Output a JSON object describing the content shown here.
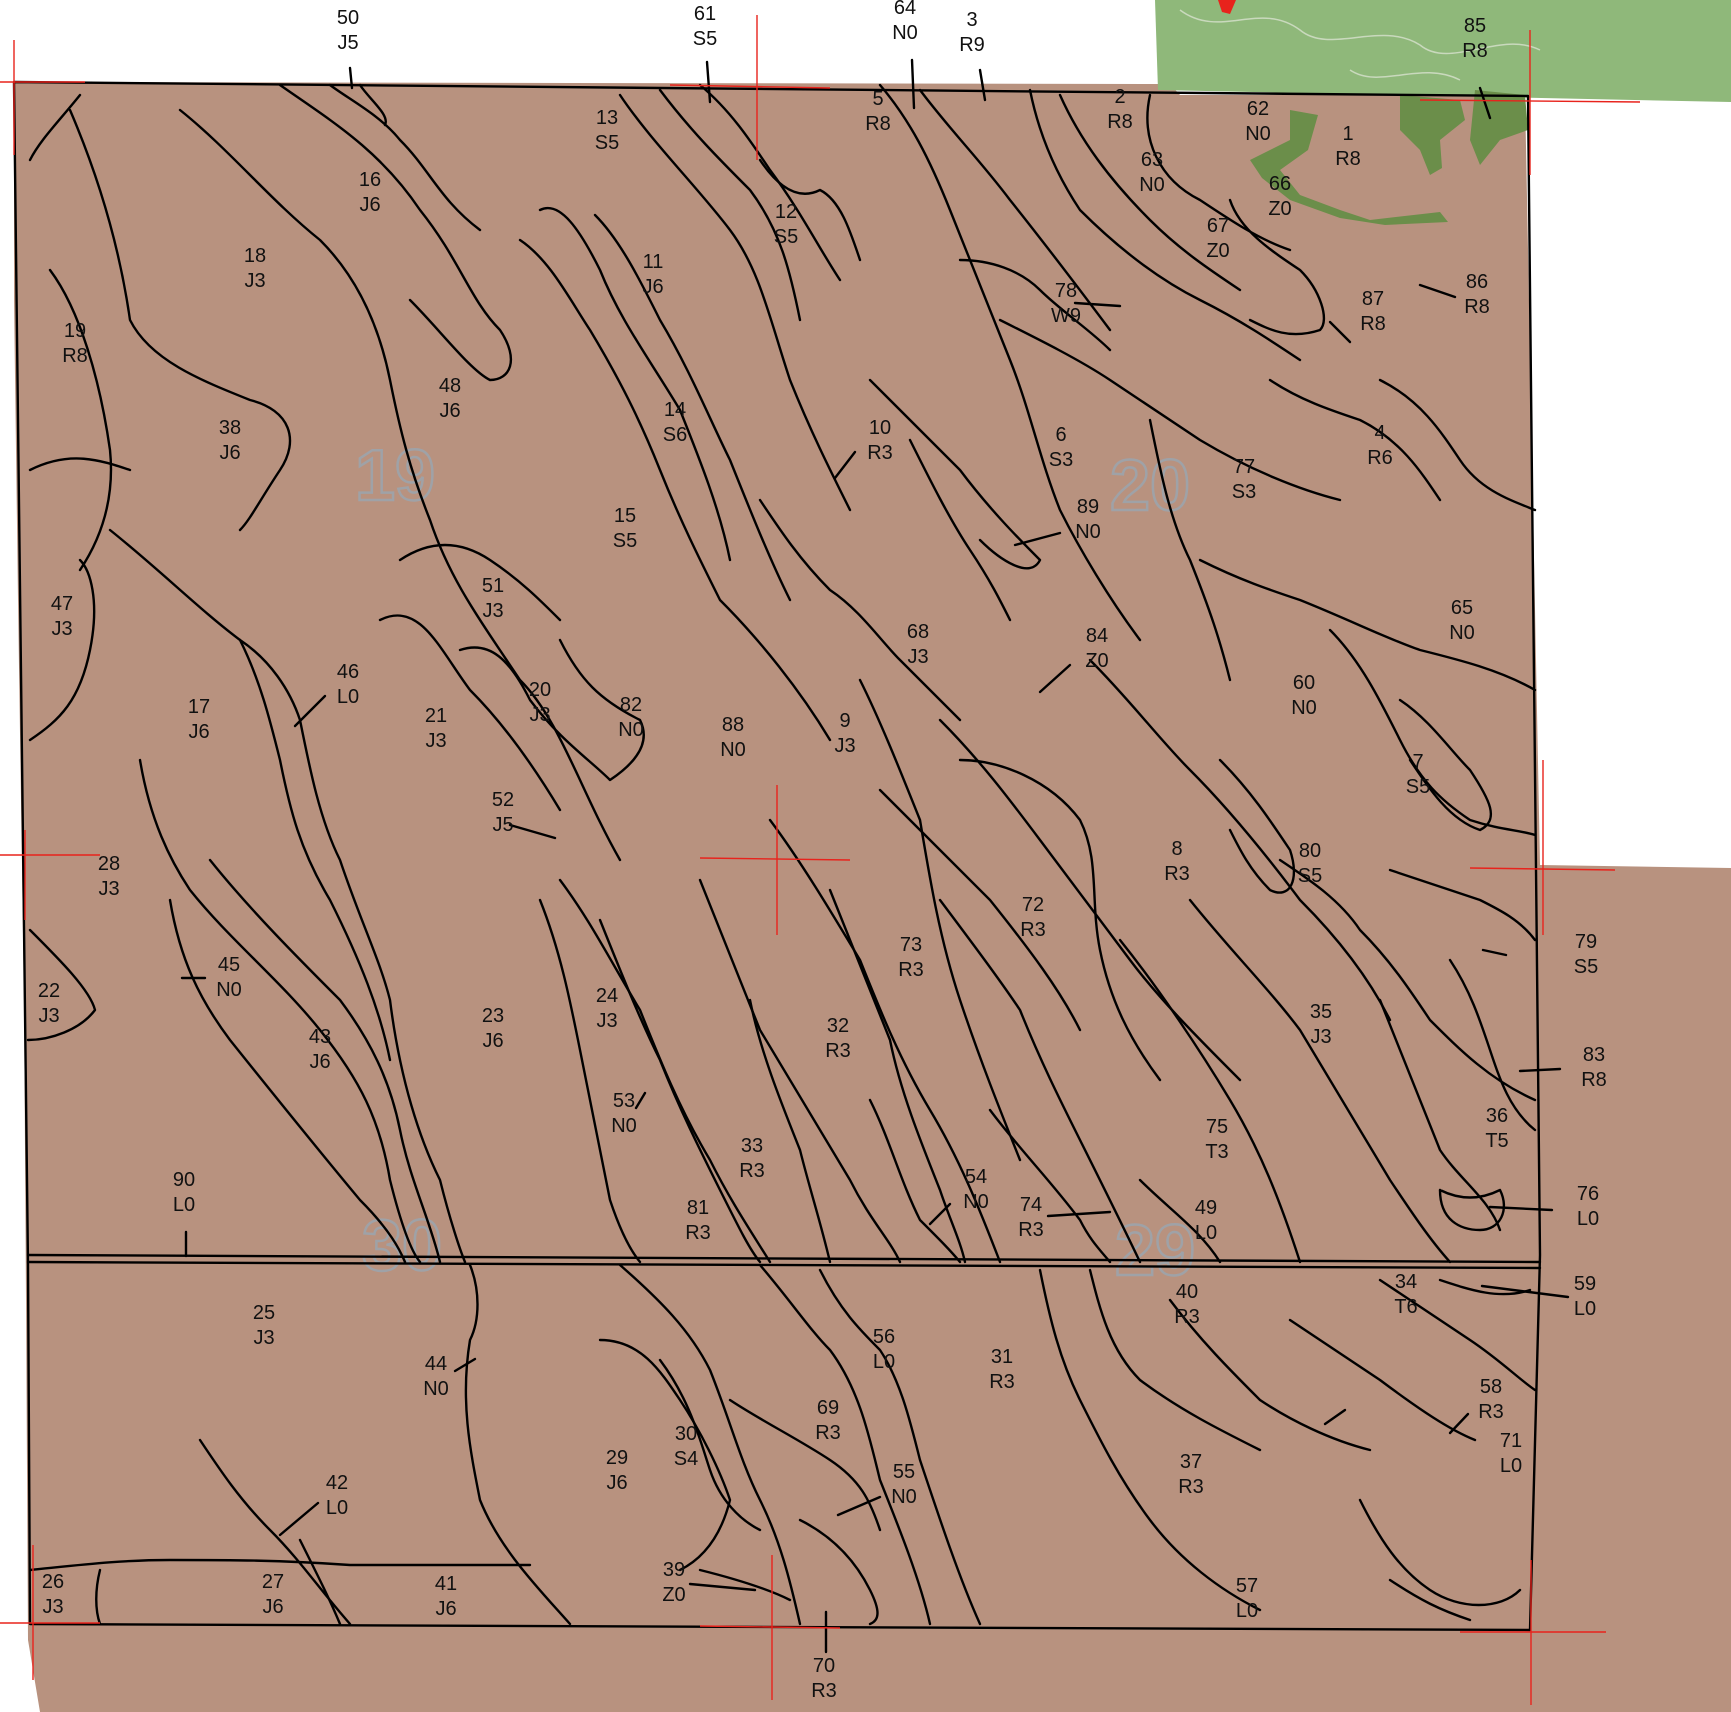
{
  "map": {
    "colors": {
      "soil": "#b8927f",
      "vegetation": "#8fb87a",
      "dark_vegetation": "#6b8e4a",
      "boundary": "#000000",
      "grid_marks": "#e8231c",
      "section_number": "#9aa6b2",
      "marker": "#e8231c"
    },
    "sections": [
      "19",
      "20",
      "30",
      "29"
    ],
    "units": [
      {
        "id": "50",
        "code": "J5"
      },
      {
        "id": "61",
        "code": "S5"
      },
      {
        "id": "64",
        "code": "N0"
      },
      {
        "id": "3",
        "code": "R9"
      },
      {
        "id": "85",
        "code": "R8"
      },
      {
        "id": "13",
        "code": "S5"
      },
      {
        "id": "5",
        "code": "R8"
      },
      {
        "id": "2",
        "code": "R8"
      },
      {
        "id": "62",
        "code": "N0"
      },
      {
        "id": "1",
        "code": "R8"
      },
      {
        "id": "63",
        "code": "N0"
      },
      {
        "id": "66",
        "code": "Z0"
      },
      {
        "id": "67",
        "code": "Z0"
      },
      {
        "id": "16",
        "code": "J6"
      },
      {
        "id": "12",
        "code": "S5"
      },
      {
        "id": "11",
        "code": "J6"
      },
      {
        "id": "18",
        "code": "J3"
      },
      {
        "id": "86",
        "code": "R8"
      },
      {
        "id": "87",
        "code": "R8"
      },
      {
        "id": "78",
        "code": "W9"
      },
      {
        "id": "19",
        "code": "R8"
      },
      {
        "id": "48",
        "code": "J6"
      },
      {
        "id": "14",
        "code": "S6"
      },
      {
        "id": "38",
        "code": "J6"
      },
      {
        "id": "10",
        "code": "R3"
      },
      {
        "id": "6",
        "code": "S3"
      },
      {
        "id": "4",
        "code": "R6"
      },
      {
        "id": "77",
        "code": "S3"
      },
      {
        "id": "89",
        "code": "N0"
      },
      {
        "id": "15",
        "code": "S5"
      },
      {
        "id": "47",
        "code": "J3"
      },
      {
        "id": "51",
        "code": "J3"
      },
      {
        "id": "65",
        "code": "N0"
      },
      {
        "id": "68",
        "code": "J3"
      },
      {
        "id": "84",
        "code": "Z0"
      },
      {
        "id": "46",
        "code": "L0"
      },
      {
        "id": "60",
        "code": "N0"
      },
      {
        "id": "20",
        "code": "J3"
      },
      {
        "id": "82",
        "code": "N0"
      },
      {
        "id": "17",
        "code": "J6"
      },
      {
        "id": "21",
        "code": "J3"
      },
      {
        "id": "88",
        "code": "N0"
      },
      {
        "id": "9",
        "code": "J3"
      },
      {
        "id": "7",
        "code": "S5"
      },
      {
        "id": "52",
        "code": "J5"
      },
      {
        "id": "8",
        "code": "R3"
      },
      {
        "id": "28",
        "code": "J3"
      },
      {
        "id": "80",
        "code": "S5"
      },
      {
        "id": "72",
        "code": "R3"
      },
      {
        "id": "73",
        "code": "R3"
      },
      {
        "id": "79",
        "code": "S5"
      },
      {
        "id": "45",
        "code": "N0"
      },
      {
        "id": "22",
        "code": "J3"
      },
      {
        "id": "24",
        "code": "J3"
      },
      {
        "id": "43",
        "code": "J6"
      },
      {
        "id": "23",
        "code": "J6"
      },
      {
        "id": "32",
        "code": "R3"
      },
      {
        "id": "35",
        "code": "J3"
      },
      {
        "id": "83",
        "code": "R8"
      },
      {
        "id": "53",
        "code": "N0"
      },
      {
        "id": "36",
        "code": "T5"
      },
      {
        "id": "75",
        "code": "T3"
      },
      {
        "id": "33",
        "code": "R3"
      },
      {
        "id": "90",
        "code": "L0"
      },
      {
        "id": "54",
        "code": "N0"
      },
      {
        "id": "76",
        "code": "L0"
      },
      {
        "id": "81",
        "code": "R3"
      },
      {
        "id": "74",
        "code": "R3"
      },
      {
        "id": "49",
        "code": "L0"
      },
      {
        "id": "34",
        "code": "T6"
      },
      {
        "id": "59",
        "code": "L0"
      },
      {
        "id": "40",
        "code": "R3"
      },
      {
        "id": "25",
        "code": "J3"
      },
      {
        "id": "56",
        "code": "L0"
      },
      {
        "id": "31",
        "code": "R3"
      },
      {
        "id": "44",
        "code": "N0"
      },
      {
        "id": "58",
        "code": "R3"
      },
      {
        "id": "69",
        "code": "R3"
      },
      {
        "id": "71",
        "code": "L0"
      },
      {
        "id": "30",
        "code": "S4"
      },
      {
        "id": "29",
        "code": "J6"
      },
      {
        "id": "37",
        "code": "R3"
      },
      {
        "id": "42",
        "code": "L0"
      },
      {
        "id": "55",
        "code": "N0"
      },
      {
        "id": "39",
        "code": "Z0"
      },
      {
        "id": "26",
        "code": "J3"
      },
      {
        "id": "27",
        "code": "J6"
      },
      {
        "id": "41",
        "code": "J6"
      },
      {
        "id": "57",
        "code": "L0"
      },
      {
        "id": "70",
        "code": "R3"
      }
    ]
  }
}
